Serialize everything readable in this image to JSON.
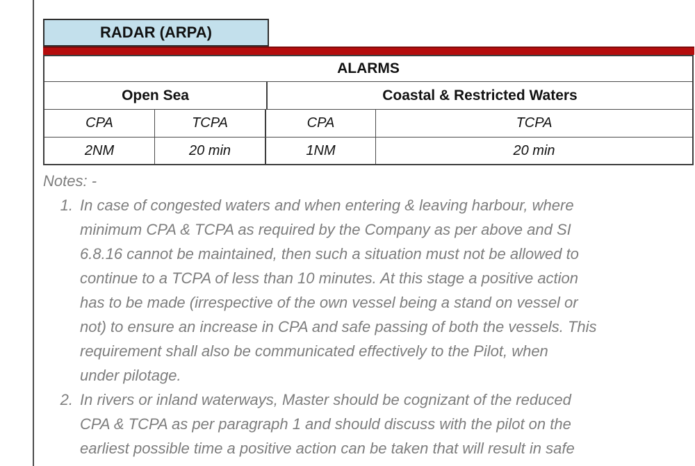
{
  "document": {
    "section_tab": "RADAR (ARPA)"
  },
  "table": {
    "title": "ALARMS",
    "column_groups": [
      {
        "label": "Open Sea"
      },
      {
        "label": "Coastal & Restricted Waters"
      }
    ],
    "sub_headers": {
      "open_sea_cpa": "CPA",
      "open_sea_tcpa": "TCPA",
      "coastal_cpa": "CPA",
      "coastal_tcpa": "TCPA"
    },
    "values": {
      "open_sea_cpa": "2NM",
      "open_sea_tcpa": "20 min",
      "coastal_cpa": "1NM",
      "coastal_tcpa": "20 min"
    }
  },
  "notes": {
    "heading": "Notes: -",
    "items": [
      {
        "number": "1.",
        "lines": [
          "In case of congested waters and when entering & leaving harbour, where",
          "minimum CPA & TCPA as required by the Company as per above and SI",
          "6.8.16 cannot be maintained, then such a situation must not be allowed to",
          "continue to a TCPA of less than 10 minutes. At this stage a positive action",
          "has to be made (irrespective of the own vessel being a stand on vessel or",
          "not) to ensure an increase in CPA and safe passing of both the vessels. This",
          "requirement shall also be communicated effectively to the Pilot, when",
          "under pilotage."
        ]
      },
      {
        "number": "2.",
        "lines": [
          "In rivers or inland waterways, Master should be cognizant of the reduced",
          "CPA & TCPA as per paragraph 1 and should discuss with the pilot on the",
          "earliest possible time a positive action can be taken that will result in safe"
        ]
      }
    ]
  },
  "colors": {
    "tab_background": "#C3E0EC",
    "accent_bar": "#B50D0D",
    "notes_text": "#7D7D7D"
  }
}
